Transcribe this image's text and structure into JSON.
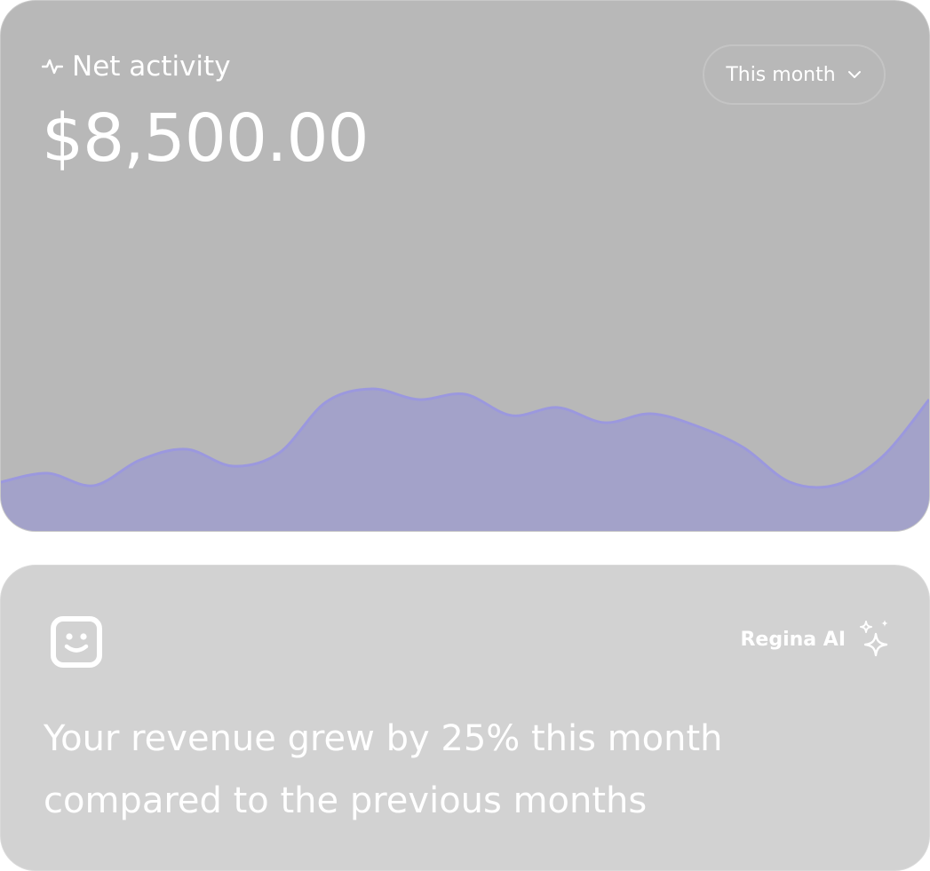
{
  "activity_card": {
    "label": "Net activity",
    "icon": "activity-pulse-icon",
    "amount": "$8,500.00",
    "period_selector": {
      "selected": "This month",
      "icon": "chevron-down-icon"
    },
    "colors": {
      "card_bg": "#b8b8b8",
      "area_fill": "#a3a2c9",
      "area_stroke": "#9b98de",
      "text": "#ffffff"
    }
  },
  "chart_data": {
    "type": "area",
    "title": "",
    "xlabel": "",
    "ylabel": "",
    "x": [
      0,
      1,
      2,
      3,
      4,
      5,
      6,
      7,
      8,
      9,
      10,
      11,
      12,
      13,
      14,
      15,
      16,
      17,
      18,
      19,
      20
    ],
    "values": [
      55,
      65,
      51,
      80,
      92,
      73,
      88,
      145,
      160,
      148,
      154,
      130,
      139,
      122,
      132,
      118,
      94,
      55,
      52,
      84,
      148
    ],
    "ylim": [
      0,
      300
    ],
    "grid": false,
    "legend": "none"
  },
  "ai_card": {
    "avatar_icon": "smiley-bot-icon",
    "brand": "Regina AI",
    "brand_icon": "sparkles-icon",
    "message_line1": "Your revenue grew by 25% this month",
    "message_line2": "compared to the previous months",
    "colors": {
      "card_bg": "#d2d2d2",
      "text": "#ffffff"
    }
  }
}
